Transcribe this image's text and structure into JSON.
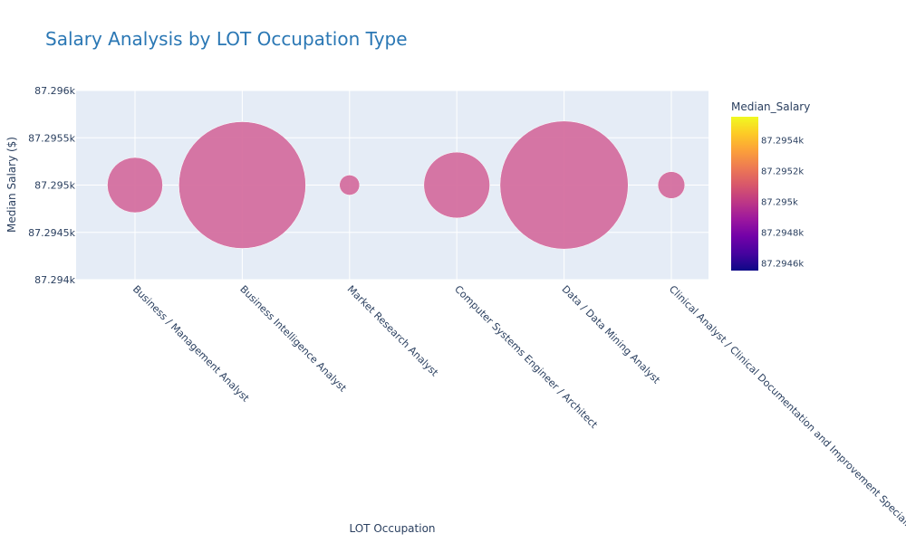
{
  "chart_data": {
    "type": "scatter",
    "title": "Salary Analysis by LOT Occupation Type",
    "xlabel": "LOT Occupation",
    "ylabel": "Median Salary ($)",
    "categories": [
      "Business / Management Analyst",
      "Business Intelligence Analyst",
      "Market Research Analyst",
      "Computer Systems Engineer / Architect",
      "Data / Data Mining Analyst",
      "Clinical Analyst / Clinical Documentation and Improvement Specialist"
    ],
    "values": [
      87295,
      87295,
      87295,
      87295,
      87295,
      87295
    ],
    "relative_bubble_size": [
      0.19,
      1.0,
      0.025,
      0.27,
      1.02,
      0.045
    ],
    "ylim": [
      87294,
      87296
    ],
    "yticks": [
      87294,
      87294.5,
      87295,
      87295.5,
      87296
    ],
    "ytick_labels": [
      "87.294k",
      "87.2945k",
      "87.295k",
      "87.2955k",
      "87.296k"
    ],
    "grid": true,
    "marker_color": "#d46a9c",
    "plot_bg_color": "#e5ecf6",
    "colorbar": {
      "title": "Median_Salary",
      "range": [
        87294.55,
        87295.55
      ],
      "ticks": [
        87294.6,
        87294.8,
        87295,
        87295.2,
        87295.4
      ],
      "tick_labels": [
        "87.2946k",
        "87.2948k",
        "87.295k",
        "87.2952k",
        "87.2954k"
      ],
      "colorscale": [
        "#0d0887",
        "#46039f",
        "#7201a8",
        "#9c179e",
        "#bd3786",
        "#d8576b",
        "#ed7953",
        "#fb9f3a",
        "#fdca26",
        "#f0f921"
      ]
    }
  }
}
